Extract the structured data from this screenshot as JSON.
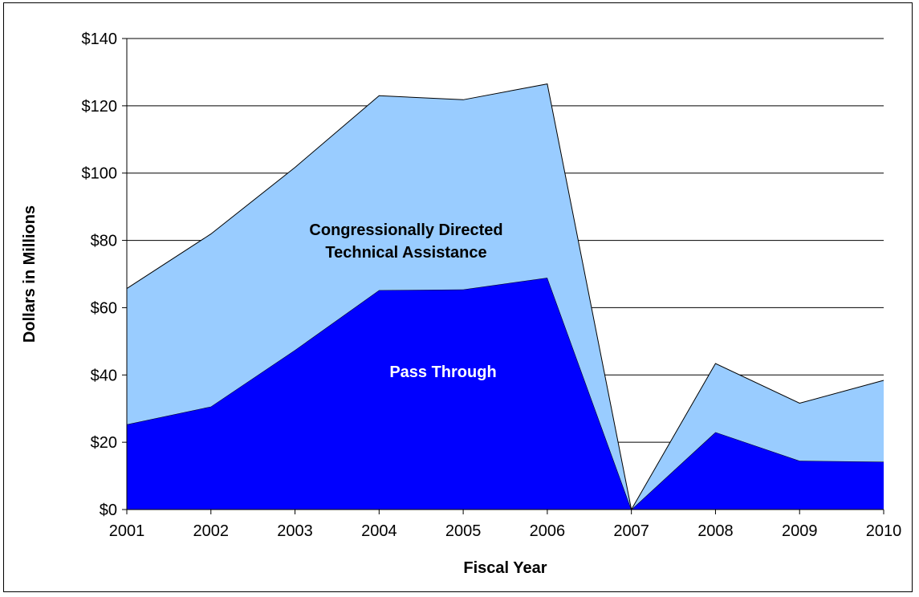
{
  "chart_data": {
    "type": "area",
    "stacked": true,
    "title": "",
    "xlabel": "Fiscal Year",
    "ylabel": "Dollars in Millions",
    "categories": [
      "2001",
      "2002",
      "2003",
      "2004",
      "2005",
      "2006",
      "2007",
      "2008",
      "2009",
      "2010"
    ],
    "ylim": [
      0,
      140
    ],
    "yticks": [
      0,
      20,
      40,
      60,
      80,
      100,
      120,
      140
    ],
    "ytick_labels": [
      "$0",
      "$20",
      "$40",
      "$60",
      "$80",
      "$100",
      "$120",
      "$140"
    ],
    "grid": true,
    "legend": "none",
    "series": [
      {
        "name": "Pass Through",
        "color": "#0000ff",
        "label_color": "#ffffff",
        "values": [
          25.3,
          30.6,
          47.4,
          65.2,
          65.4,
          68.9,
          0,
          23.0,
          14.5,
          14.2
        ]
      },
      {
        "name": "Congressionally Directed Technical Assistance",
        "label_lines": [
          "Congressionally Directed",
          "Technical Assistance"
        ],
        "color": "#99ccff",
        "label_color": "#000000",
        "values": [
          40.4,
          51.3,
          54.3,
          57.8,
          56.4,
          57.6,
          0,
          20.4,
          17.1,
          24.2
        ]
      }
    ]
  }
}
